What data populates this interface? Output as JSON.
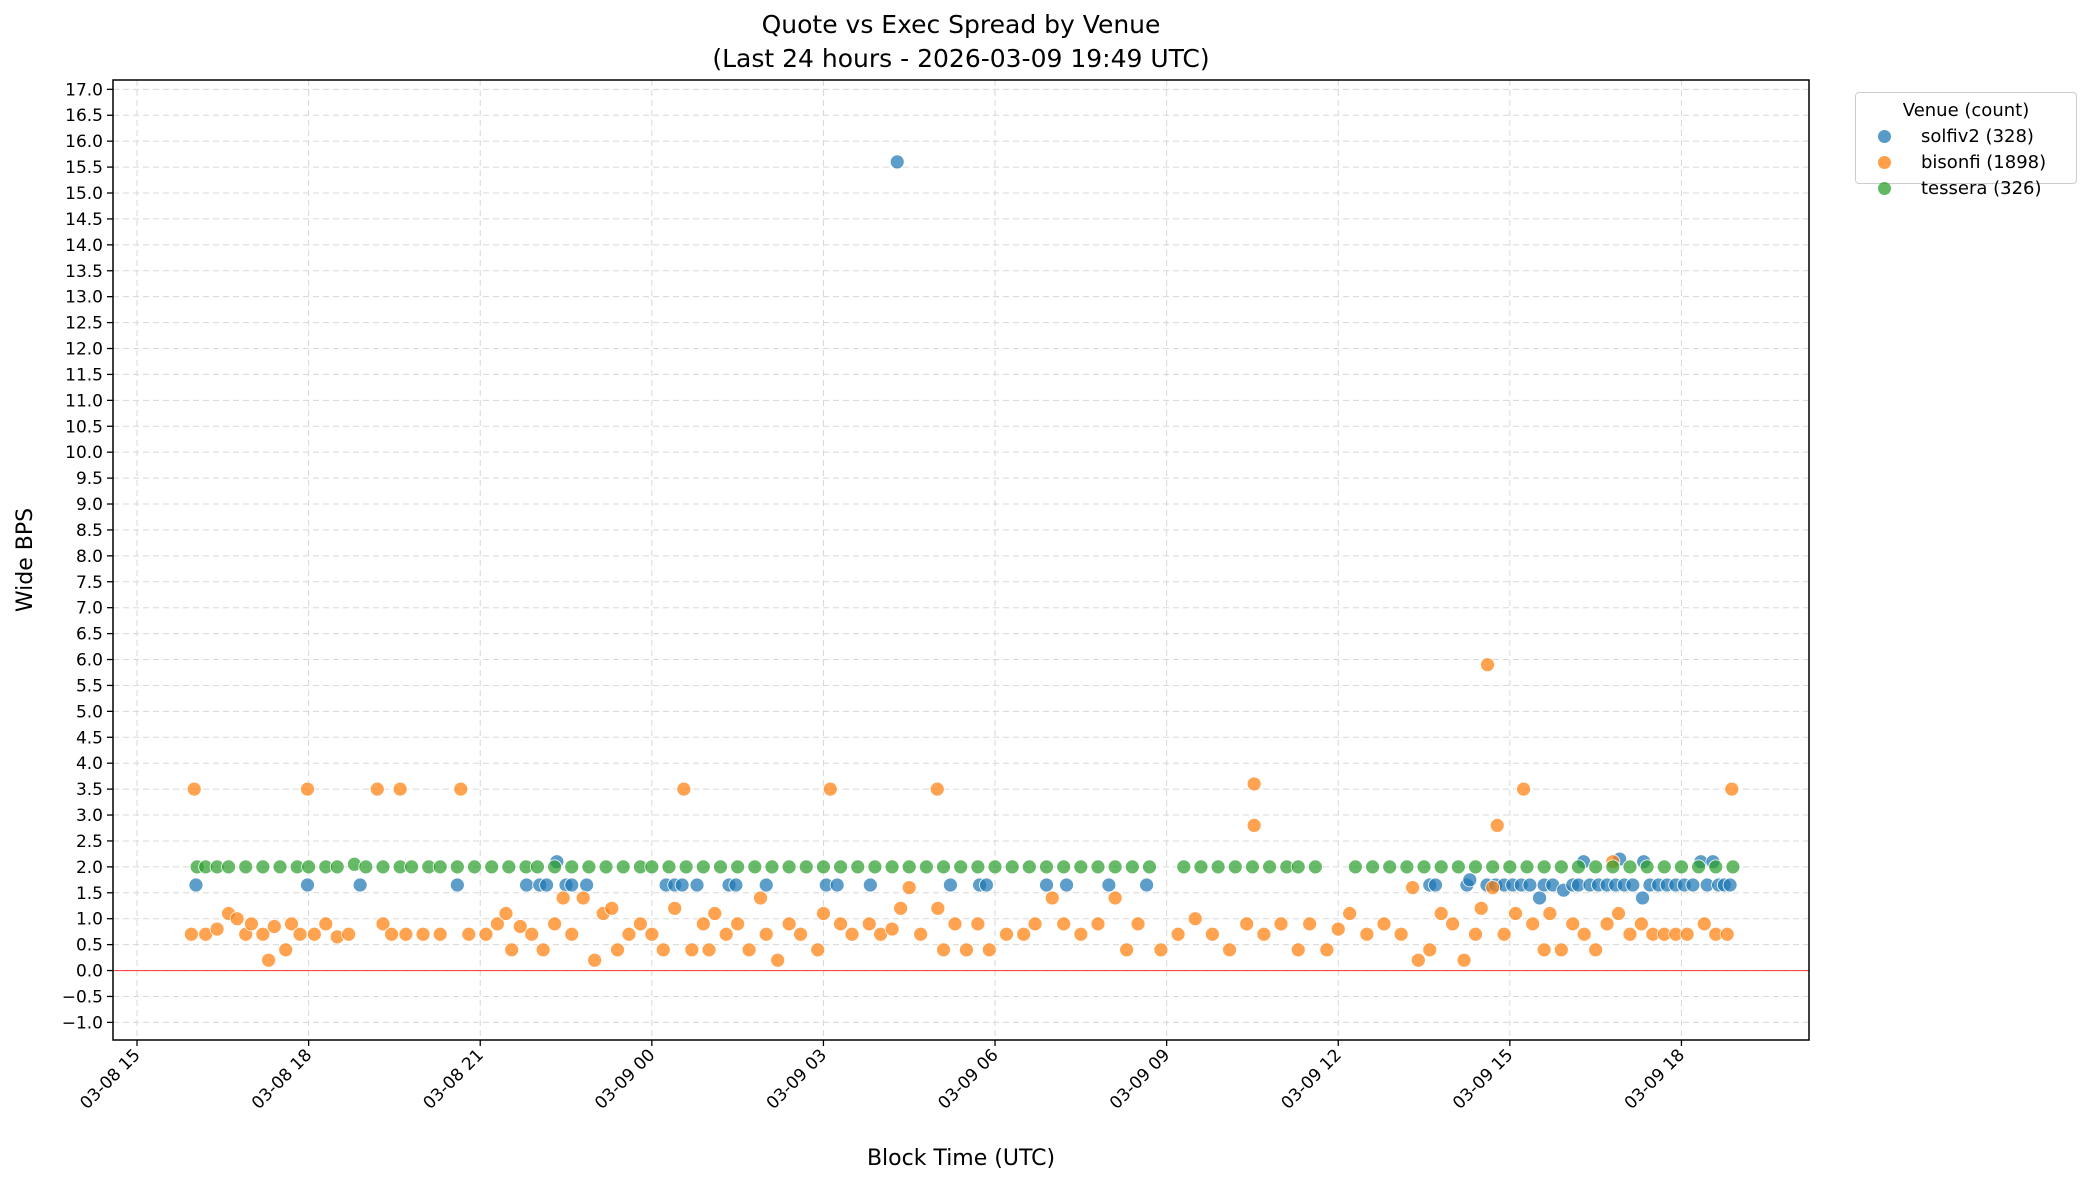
{
  "chart_data": {
    "type": "scatter",
    "title": "Quote vs Exec Spread by Venue",
    "subtitle": "(Last 24 hours - 2026-03-09 19:49 UTC)",
    "xlabel": "Block Time (UTC)",
    "ylabel": "Wide BPS",
    "x_units": "hours from 2026-03-08 00:00 UTC",
    "xlim": [
      14.58,
      44.23
    ],
    "ylim": [
      -1.34,
      17.18
    ],
    "grid": true,
    "reference_line": {
      "y": 0,
      "color": "#ff0000"
    },
    "xticks": [
      {
        "value": 15,
        "label": "03-08 15"
      },
      {
        "value": 18,
        "label": "03-08 18"
      },
      {
        "value": 21,
        "label": "03-08 21"
      },
      {
        "value": 24,
        "label": "03-09 00"
      },
      {
        "value": 27,
        "label": "03-09 03"
      },
      {
        "value": 30,
        "label": "03-09 06"
      },
      {
        "value": 33,
        "label": "03-09 09"
      },
      {
        "value": 36,
        "label": "03-09 12"
      },
      {
        "value": 39,
        "label": "03-09 15"
      },
      {
        "value": 42,
        "label": "03-09 18"
      }
    ],
    "yticks": [
      "−1.0",
      "−0.5",
      "0.0",
      "0.5",
      "1.0",
      "1.5",
      "2.0",
      "2.5",
      "3.0",
      "3.5",
      "4.0",
      "4.5",
      "5.0",
      "5.5",
      "6.0",
      "6.5",
      "7.0",
      "7.5",
      "8.0",
      "8.5",
      "9.0",
      "9.5",
      "10.0",
      "10.5",
      "11.0",
      "11.5",
      "12.0",
      "12.5",
      "13.0",
      "13.5",
      "14.0",
      "14.5",
      "15.0",
      "15.5",
      "16.0",
      "16.5",
      "17.0"
    ],
    "legend": {
      "title": "Venue (count)",
      "placement": "outside-top-right"
    },
    "series": [
      {
        "name": "solfiv2 (328)",
        "color": "#1f77b4",
        "points": [
          [
            16.03,
            1.65
          ],
          [
            17.98,
            1.65
          ],
          [
            18.9,
            1.65
          ],
          [
            20.6,
            1.65
          ],
          [
            21.81,
            1.65
          ],
          [
            22.04,
            1.65
          ],
          [
            22.16,
            1.65
          ],
          [
            22.34,
            2.1
          ],
          [
            22.5,
            1.65
          ],
          [
            22.6,
            1.65
          ],
          [
            22.86,
            1.65
          ],
          [
            24.25,
            1.65
          ],
          [
            24.4,
            1.65
          ],
          [
            24.53,
            1.65
          ],
          [
            24.79,
            1.65
          ],
          [
            25.35,
            1.65
          ],
          [
            25.47,
            1.65
          ],
          [
            26.0,
            1.65
          ],
          [
            27.05,
            1.65
          ],
          [
            27.24,
            1.65
          ],
          [
            27.82,
            1.65
          ],
          [
            28.29,
            15.6
          ],
          [
            29.22,
            1.65
          ],
          [
            29.73,
            1.65
          ],
          [
            29.85,
            1.65
          ],
          [
            30.9,
            1.65
          ],
          [
            31.25,
            1.65
          ],
          [
            31.99,
            1.65
          ],
          [
            32.65,
            1.65
          ],
          [
            37.6,
            1.65
          ],
          [
            37.7,
            1.65
          ],
          [
            38.25,
            1.65
          ],
          [
            38.3,
            1.75
          ],
          [
            38.6,
            1.65
          ],
          [
            38.75,
            1.65
          ],
          [
            38.9,
            1.65
          ],
          [
            39.05,
            1.65
          ],
          [
            39.2,
            1.65
          ],
          [
            39.35,
            1.65
          ],
          [
            39.52,
            1.4
          ],
          [
            39.6,
            1.65
          ],
          [
            39.75,
            1.65
          ],
          [
            39.94,
            1.55
          ],
          [
            40.1,
            1.65
          ],
          [
            40.2,
            1.65
          ],
          [
            40.29,
            2.1
          ],
          [
            40.4,
            1.65
          ],
          [
            40.55,
            1.65
          ],
          [
            40.7,
            1.65
          ],
          [
            40.85,
            1.65
          ],
          [
            40.92,
            2.15
          ],
          [
            41.0,
            1.65
          ],
          [
            41.15,
            1.65
          ],
          [
            41.32,
            1.4
          ],
          [
            41.34,
            2.1
          ],
          [
            41.45,
            1.65
          ],
          [
            41.6,
            1.65
          ],
          [
            41.75,
            1.65
          ],
          [
            41.9,
            1.65
          ],
          [
            42.05,
            1.65
          ],
          [
            42.2,
            1.65
          ],
          [
            42.34,
            2.1
          ],
          [
            42.45,
            1.65
          ],
          [
            42.55,
            2.1
          ],
          [
            42.65,
            1.65
          ],
          [
            42.75,
            1.65
          ],
          [
            42.85,
            1.65
          ]
        ]
      },
      {
        "name": "bisonfi (1898)",
        "color": "#ff7f0e",
        "points": [
          [
            16.0,
            3.5
          ],
          [
            15.95,
            0.7
          ],
          [
            16.2,
            0.7
          ],
          [
            16.4,
            0.8
          ],
          [
            16.6,
            1.1
          ],
          [
            16.75,
            1.0
          ],
          [
            16.9,
            0.7
          ],
          [
            17.0,
            0.9
          ],
          [
            17.2,
            0.7
          ],
          [
            17.3,
            0.2
          ],
          [
            17.4,
            0.85
          ],
          [
            17.6,
            0.4
          ],
          [
            17.7,
            0.9
          ],
          [
            17.85,
            0.7
          ],
          [
            17.98,
            3.5
          ],
          [
            18.1,
            0.7
          ],
          [
            18.3,
            0.9
          ],
          [
            18.5,
            0.65
          ],
          [
            18.7,
            0.7
          ],
          [
            19.2,
            3.5
          ],
          [
            19.3,
            0.9
          ],
          [
            19.45,
            0.7
          ],
          [
            19.6,
            3.5
          ],
          [
            19.7,
            0.7
          ],
          [
            20.0,
            0.7
          ],
          [
            20.3,
            0.7
          ],
          [
            20.66,
            3.5
          ],
          [
            20.8,
            0.7
          ],
          [
            21.1,
            0.7
          ],
          [
            21.3,
            0.9
          ],
          [
            21.45,
            1.1
          ],
          [
            21.55,
            0.4
          ],
          [
            21.7,
            0.85
          ],
          [
            21.9,
            0.7
          ],
          [
            22.1,
            0.4
          ],
          [
            22.3,
            0.9
          ],
          [
            22.45,
            1.4
          ],
          [
            22.6,
            0.7
          ],
          [
            22.8,
            1.4
          ],
          [
            23.0,
            0.2
          ],
          [
            23.15,
            1.1
          ],
          [
            23.3,
            1.2
          ],
          [
            23.4,
            0.4
          ],
          [
            23.6,
            0.7
          ],
          [
            23.8,
            0.9
          ],
          [
            24.0,
            0.7
          ],
          [
            24.2,
            0.4
          ],
          [
            24.4,
            1.2
          ],
          [
            24.56,
            3.5
          ],
          [
            24.7,
            0.4
          ],
          [
            24.9,
            0.9
          ],
          [
            25.0,
            0.4
          ],
          [
            25.1,
            1.1
          ],
          [
            25.3,
            0.7
          ],
          [
            25.5,
            0.9
          ],
          [
            25.7,
            0.4
          ],
          [
            25.9,
            1.4
          ],
          [
            26.0,
            0.7
          ],
          [
            26.2,
            0.2
          ],
          [
            26.4,
            0.9
          ],
          [
            26.6,
            0.7
          ],
          [
            26.9,
            0.4
          ],
          [
            27.0,
            1.1
          ],
          [
            27.12,
            3.5
          ],
          [
            27.3,
            0.9
          ],
          [
            27.5,
            0.7
          ],
          [
            27.8,
            0.9
          ],
          [
            28.0,
            0.7
          ],
          [
            28.2,
            0.8
          ],
          [
            28.35,
            1.2
          ],
          [
            28.5,
            1.6
          ],
          [
            28.7,
            0.7
          ],
          [
            28.99,
            3.5
          ],
          [
            29.0,
            1.2
          ],
          [
            29.1,
            0.4
          ],
          [
            29.3,
            0.9
          ],
          [
            29.5,
            0.4
          ],
          [
            29.7,
            0.9
          ],
          [
            29.9,
            0.4
          ],
          [
            30.2,
            0.7
          ],
          [
            30.5,
            0.7
          ],
          [
            30.7,
            0.9
          ],
          [
            31.0,
            1.4
          ],
          [
            31.2,
            0.9
          ],
          [
            31.5,
            0.7
          ],
          [
            31.8,
            0.9
          ],
          [
            32.1,
            1.4
          ],
          [
            32.3,
            0.4
          ],
          [
            32.5,
            0.9
          ],
          [
            32.9,
            0.4
          ],
          [
            33.2,
            0.7
          ],
          [
            33.5,
            1.0
          ],
          [
            33.8,
            0.7
          ],
          [
            34.1,
            0.4
          ],
          [
            34.4,
            0.9
          ],
          [
            34.53,
            3.6
          ],
          [
            34.53,
            2.8
          ],
          [
            34.7,
            0.7
          ],
          [
            35.0,
            0.9
          ],
          [
            35.3,
            0.4
          ],
          [
            35.5,
            0.9
          ],
          [
            35.8,
            0.4
          ],
          [
            36.0,
            0.8
          ],
          [
            36.2,
            1.1
          ],
          [
            36.5,
            0.7
          ],
          [
            36.8,
            0.9
          ],
          [
            37.1,
            0.7
          ],
          [
            37.3,
            1.6
          ],
          [
            37.4,
            0.2
          ],
          [
            37.6,
            0.4
          ],
          [
            37.8,
            1.1
          ],
          [
            38.0,
            0.9
          ],
          [
            38.2,
            0.2
          ],
          [
            38.4,
            0.7
          ],
          [
            38.5,
            1.2
          ],
          [
            38.61,
            5.9
          ],
          [
            38.7,
            1.6
          ],
          [
            38.78,
            2.8
          ],
          [
            38.9,
            0.7
          ],
          [
            39.1,
            1.1
          ],
          [
            39.24,
            3.5
          ],
          [
            39.4,
            0.9
          ],
          [
            39.6,
            0.4
          ],
          [
            39.7,
            1.1
          ],
          [
            39.9,
            0.4
          ],
          [
            40.1,
            0.9
          ],
          [
            40.3,
            0.7
          ],
          [
            40.5,
            0.4
          ],
          [
            40.7,
            0.9
          ],
          [
            40.8,
            2.1
          ],
          [
            40.9,
            1.1
          ],
          [
            41.1,
            0.7
          ],
          [
            41.3,
            0.9
          ],
          [
            41.5,
            0.7
          ],
          [
            41.7,
            0.7
          ],
          [
            41.9,
            0.7
          ],
          [
            42.1,
            0.7
          ],
          [
            42.4,
            0.9
          ],
          [
            42.6,
            0.7
          ],
          [
            42.8,
            0.7
          ],
          [
            42.88,
            3.5
          ]
        ]
      },
      {
        "name": "tessera (326)",
        "color": "#2ca02c",
        "points": [
          [
            16.05,
            2.0
          ],
          [
            16.2,
            2.0
          ],
          [
            16.4,
            2.0
          ],
          [
            16.6,
            2.0
          ],
          [
            16.9,
            2.0
          ],
          [
            17.2,
            2.0
          ],
          [
            17.5,
            2.0
          ],
          [
            17.8,
            2.0
          ],
          [
            18.0,
            2.0
          ],
          [
            18.3,
            2.0
          ],
          [
            18.5,
            2.0
          ],
          [
            18.8,
            2.05
          ],
          [
            19.0,
            2.0
          ],
          [
            19.3,
            2.0
          ],
          [
            19.6,
            2.0
          ],
          [
            19.8,
            2.0
          ],
          [
            20.1,
            2.0
          ],
          [
            20.3,
            2.0
          ],
          [
            20.6,
            2.0
          ],
          [
            20.9,
            2.0
          ],
          [
            21.2,
            2.0
          ],
          [
            21.5,
            2.0
          ],
          [
            21.8,
            2.0
          ],
          [
            22.0,
            2.0
          ],
          [
            22.3,
            2.0
          ],
          [
            22.6,
            2.0
          ],
          [
            22.9,
            2.0
          ],
          [
            23.2,
            2.0
          ],
          [
            23.5,
            2.0
          ],
          [
            23.8,
            2.0
          ],
          [
            24.0,
            2.0
          ],
          [
            24.3,
            2.0
          ],
          [
            24.6,
            2.0
          ],
          [
            24.9,
            2.0
          ],
          [
            25.2,
            2.0
          ],
          [
            25.5,
            2.0
          ],
          [
            25.8,
            2.0
          ],
          [
            26.1,
            2.0
          ],
          [
            26.4,
            2.0
          ],
          [
            26.7,
            2.0
          ],
          [
            27.0,
            2.0
          ],
          [
            27.3,
            2.0
          ],
          [
            27.6,
            2.0
          ],
          [
            27.9,
            2.0
          ],
          [
            28.2,
            2.0
          ],
          [
            28.5,
            2.0
          ],
          [
            28.8,
            2.0
          ],
          [
            29.1,
            2.0
          ],
          [
            29.4,
            2.0
          ],
          [
            29.7,
            2.0
          ],
          [
            30.0,
            2.0
          ],
          [
            30.3,
            2.0
          ],
          [
            30.6,
            2.0
          ],
          [
            30.9,
            2.0
          ],
          [
            31.2,
            2.0
          ],
          [
            31.5,
            2.0
          ],
          [
            31.8,
            2.0
          ],
          [
            32.1,
            2.0
          ],
          [
            32.4,
            2.0
          ],
          [
            32.7,
            2.0
          ],
          [
            33.3,
            2.0
          ],
          [
            33.6,
            2.0
          ],
          [
            33.9,
            2.0
          ],
          [
            34.2,
            2.0
          ],
          [
            34.5,
            2.0
          ],
          [
            34.8,
            2.0
          ],
          [
            35.1,
            2.0
          ],
          [
            35.3,
            2.0
          ],
          [
            35.6,
            2.0
          ],
          [
            36.3,
            2.0
          ],
          [
            36.6,
            2.0
          ],
          [
            36.9,
            2.0
          ],
          [
            37.2,
            2.0
          ],
          [
            37.5,
            2.0
          ],
          [
            37.8,
            2.0
          ],
          [
            38.1,
            2.0
          ],
          [
            38.4,
            2.0
          ],
          [
            38.7,
            2.0
          ],
          [
            39.0,
            2.0
          ],
          [
            39.3,
            2.0
          ],
          [
            39.6,
            2.0
          ],
          [
            39.9,
            2.0
          ],
          [
            40.2,
            2.0
          ],
          [
            40.5,
            2.0
          ],
          [
            40.8,
            2.0
          ],
          [
            41.1,
            2.0
          ],
          [
            41.4,
            2.0
          ],
          [
            41.7,
            2.0
          ],
          [
            42.0,
            2.0
          ],
          [
            42.3,
            2.0
          ],
          [
            42.6,
            2.0
          ],
          [
            42.9,
            2.0
          ]
        ]
      }
    ]
  }
}
